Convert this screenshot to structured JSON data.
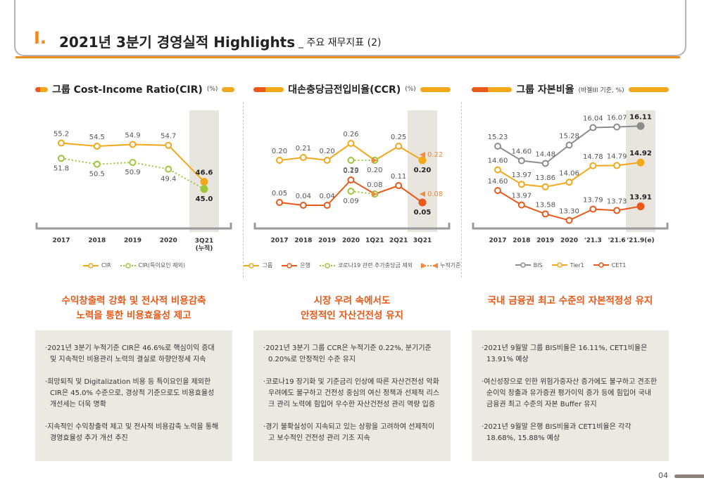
{
  "header": {
    "section": "I.",
    "title": "2021년 3분기 경영실적 Highlights",
    "subtitle": "_ 주요 재무지표 (2)"
  },
  "chart_data": [
    {
      "type": "line",
      "title": "그룹 Cost-Income Ratio(CIR)",
      "unit": "(%)",
      "categories": [
        "2017",
        "2018",
        "2019",
        "2020",
        "3Q21\n(누적)"
      ],
      "highlight_last": true,
      "ylim": [
        37,
        62
      ],
      "series": [
        {
          "name": "CIR",
          "color": "#f3a81b",
          "values": [
            55.2,
            54.5,
            54.9,
            54.7,
            46.6
          ],
          "value_labels": [
            "55.2",
            "54.5",
            "54.9",
            "54.7",
            "46.6"
          ]
        },
        {
          "name": "CIR(특이요인 제외)",
          "color": "#9cc63b",
          "dash": true,
          "values": [
            51.8,
            50.5,
            50.9,
            49.4,
            45.0
          ],
          "value_labels": [
            "51.8",
            "50.5",
            "50.9",
            "49.4",
            "45.0"
          ]
        }
      ]
    },
    {
      "type": "line",
      "title": "대손충당금전입비율(CCR)",
      "unit": "(%)",
      "categories": [
        "2017",
        "2018",
        "2019",
        "2020",
        "1Q21",
        "2Q21",
        "3Q21"
      ],
      "highlight_last": true,
      "ylim": [
        -0.03,
        0.37
      ],
      "series": [
        {
          "name": "그룹",
          "color": "#f3a81b",
          "values": [
            0.2,
            0.21,
            0.2,
            0.26,
            0.2,
            0.25,
            0.2
          ],
          "value_labels": [
            "0.20",
            "0.21",
            "0.20",
            "0.26",
            null,
            "0.25",
            "0.20"
          ]
        },
        {
          "name": "은행",
          "color": "#e8591a",
          "values": [
            0.05,
            0.04,
            0.04,
            0.13,
            0.08,
            0.11,
            0.05
          ],
          "value_labels": [
            "0.05",
            "0.04",
            "0.04",
            "0.13",
            "0.08",
            "0.11",
            "0.05"
          ]
        },
        {
          "name": "코로나19 관련 추가충당금 제외",
          "color": "#9cc63b",
          "dash": true,
          "values": [
            null,
            null,
            null,
            0.2,
            0.2,
            null,
            null
          ],
          "value_labels": [
            null,
            null,
            null,
            "0.20",
            "0.20",
            null,
            null
          ]
        },
        {
          "name": "코로나19 관련 추가충당금 제외",
          "color": "#9cc63b",
          "dash": true,
          "values": [
            null,
            null,
            null,
            0.09,
            0.08,
            null,
            null
          ],
          "value_labels": [
            null,
            null,
            null,
            "0.09",
            null,
            null,
            null
          ]
        },
        {
          "name": "누적기준",
          "color": "#f08a3c",
          "dash": true,
          "marker": "triangle",
          "values": [
            null,
            null,
            null,
            null,
            0.2,
            null,
            0.22
          ],
          "value_labels": [
            null,
            null,
            null,
            null,
            null,
            null,
            "0.22"
          ]
        },
        {
          "name": "누적기준",
          "color": "#f08a3c",
          "dash": true,
          "marker": "triangle",
          "values": [
            null,
            null,
            null,
            null,
            0.08,
            null,
            0.08
          ],
          "value_labels": [
            null,
            null,
            null,
            null,
            null,
            null,
            "0.08"
          ]
        }
      ]
    },
    {
      "type": "line",
      "title": "그룹 자본비율",
      "unit": "(바젤III 기준, %)",
      "categories": [
        "2017",
        "2018",
        "2019",
        "2020",
        "'21.3",
        "'21.6",
        "'21.9(e)"
      ],
      "highlight_last": true,
      "series": [
        {
          "name": "BIS",
          "color": "#8c8c8c",
          "ylim": [
            11.8,
            16.7
          ],
          "values": [
            15.23,
            14.6,
            14.48,
            15.28,
            16.04,
            16.07,
            16.11
          ],
          "value_labels": [
            "15.23",
            "14.60",
            "14.48",
            "15.28",
            "16.04",
            "16.07",
            "16.11"
          ]
        },
        {
          "name": "Tier1",
          "color": "#f3a81b",
          "ylim": [
            12.2,
            17.1
          ],
          "values": [
            14.6,
            13.97,
            13.86,
            14.06,
            14.78,
            14.79,
            14.92
          ],
          "value_labels": [
            "14.60",
            "13.97",
            "13.86",
            "14.06",
            "14.78",
            "14.79",
            "14.92"
          ]
        },
        {
          "name": "CET1",
          "color": "#e8591a",
          "ylim": [
            13.1,
            18.0
          ],
          "values": [
            14.6,
            13.97,
            13.58,
            13.3,
            13.79,
            13.73,
            13.91
          ],
          "value_labels": [
            "14.60",
            "13.97",
            "13.58",
            "13.30",
            "13.79",
            "13.73",
            "13.91"
          ]
        }
      ]
    }
  ],
  "columns": [
    {
      "headline": [
        "수익창출력 강화 및 전사적 비용감축",
        "노력을 통한 비용효율성 제고"
      ],
      "bullets": [
        "2021년 3분기 누적기준 CIR은 46.6%로 핵심이익 증대 및 지속적인 비용관리 노력의 결실로 하향안정세 지속",
        "희망퇴직 및 Digitalization 비용 등 특이요인을 제외한 CIR은 45.0% 수준으로, 경상적 기준으로도 비용효율성 개선세는 더욱 명확",
        "지속적인 수익창출력 제고 및 전사적 비용감축 노력을 통해 경영효율성 추가 개선 추진"
      ]
    },
    {
      "headline": [
        "시장 우려 속에서도",
        "안정적인 자산건전성 유지"
      ],
      "bullets": [
        "2021년 3분기 그룹 CCR은 누적기준 0.22%, 분기기준 0.20%로 안정적인 수준 유지",
        "코로나19 장기화 및 기준금리 인상에 따른 자산건전성 악화 우려에도 불구하고 건전성 중심의 여신 정책과 선제적 리스크 관리 노력에 힘입어 우수한 자산건전성 관리 역량 입증",
        "경기 불확실성이 지속되고 있는 상황을 고려하여 선제적이고 보수적인 건전성 관리 기조 지속"
      ]
    },
    {
      "headline": [
        "국내 금융권 최고 수준의 자본적정성 유지"
      ],
      "bullets": [
        "2021년 9월말 그룹 BIS비율은 16.11%, CET1비율은 13.91% 예상",
        "여신성장으로 인한 위험가중자산 증가에도 불구하고 견조한 순이익 창출과 유가증권 평가이익 증가 등에 힘입어 국내 금융권 최고 수준의 자본 Buffer 유지",
        "2021년 9월말 은행 BIS비율과 CET1비율은 각각 18.68%, 15.88% 예상"
      ]
    }
  ],
  "page_number": "04"
}
